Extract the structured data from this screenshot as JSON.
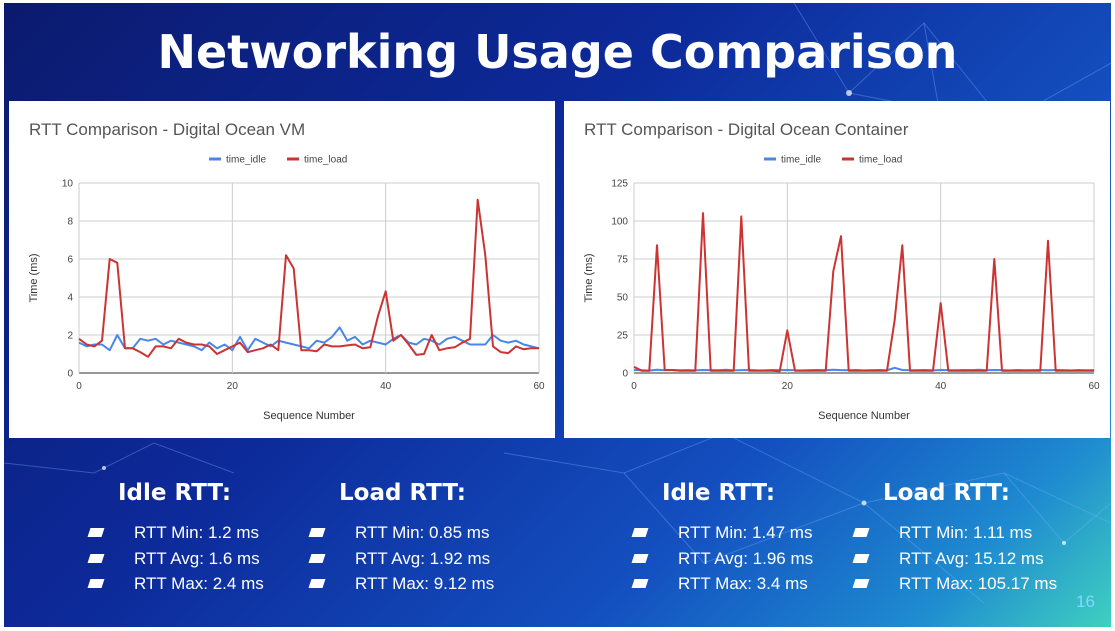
{
  "slide": {
    "title": "Networking Usage Comparison",
    "page_number": "16"
  },
  "colors": {
    "idle": "#4a86e8",
    "load": "#cc3333",
    "background_dark": "#0b1a6e",
    "background_light": "#3fd0c0"
  },
  "chart_data": [
    {
      "type": "line",
      "title": "RTT Comparison - Digital Ocean VM",
      "xlabel": "Sequence Number",
      "ylabel": "Time (ms)",
      "xlim": [
        0,
        60
      ],
      "ylim": [
        0,
        10
      ],
      "xticks": [
        "0",
        "20",
        "40",
        "60"
      ],
      "yticks": [
        "0",
        "2",
        "4",
        "6",
        "8",
        "10"
      ],
      "legend_position": "top",
      "grid": true,
      "series": [
        {
          "name": "time_idle",
          "color": "#4a86e8",
          "values": [
            1.6,
            1.4,
            1.5,
            1.5,
            1.2,
            2.0,
            1.3,
            1.3,
            1.8,
            1.7,
            1.8,
            1.5,
            1.7,
            1.6,
            1.5,
            1.4,
            1.2,
            1.6,
            1.3,
            1.5,
            1.2,
            1.9,
            1.2,
            1.8,
            1.6,
            1.4,
            1.7,
            1.6,
            1.5,
            1.4,
            1.3,
            1.7,
            1.6,
            1.9,
            2.4,
            1.7,
            1.9,
            1.5,
            1.7,
            1.6,
            1.5,
            1.8,
            2.0,
            1.6,
            1.5,
            1.8,
            1.7,
            1.5,
            1.8,
            1.9,
            1.7,
            1.5,
            1.5,
            1.5,
            2.0,
            1.7,
            1.6,
            1.7,
            1.5,
            1.4,
            1.3
          ]
        },
        {
          "name": "time_load",
          "color": "#cc3333",
          "values": [
            1.8,
            1.5,
            1.4,
            1.7,
            6.0,
            5.8,
            1.3,
            1.3,
            1.1,
            0.85,
            1.4,
            1.4,
            1.3,
            1.8,
            1.6,
            1.5,
            1.5,
            1.4,
            1.0,
            1.2,
            1.4,
            1.6,
            1.1,
            1.2,
            1.3,
            1.5,
            1.2,
            6.2,
            5.5,
            1.2,
            1.2,
            1.15,
            1.5,
            1.4,
            1.4,
            1.45,
            1.5,
            1.3,
            1.35,
            3.0,
            4.3,
            1.7,
            2.0,
            1.5,
            0.95,
            1.0,
            2.0,
            1.2,
            1.3,
            1.35,
            1.6,
            1.8,
            9.12,
            6.2,
            1.4,
            1.1,
            1.05,
            1.4,
            1.25,
            1.3,
            1.3
          ]
        }
      ]
    },
    {
      "type": "line",
      "title": "RTT Comparison - Digital Ocean Container",
      "xlabel": "Sequence Number",
      "ylabel": "Time (ms)",
      "xlim": [
        0,
        60
      ],
      "ylim": [
        0,
        125
      ],
      "xticks": [
        "0",
        "20",
        "40",
        "60"
      ],
      "yticks": [
        "0",
        "25",
        "50",
        "75",
        "100",
        "125"
      ],
      "legend_position": "top",
      "grid": true,
      "series": [
        {
          "name": "time_idle",
          "color": "#4a86e8",
          "values": [
            2,
            1.8,
            1.6,
            2.2,
            1.8,
            2,
            1.8,
            1.9,
            1.7,
            2,
            1.9,
            1.8,
            2.1,
            1.7,
            1.9,
            2,
            1.8,
            1.7,
            2,
            1.9,
            2,
            1.8,
            1.7,
            1.9,
            2,
            1.8,
            2.1,
            1.9,
            1.8,
            2,
            1.7,
            1.9,
            2,
            1.8,
            3.4,
            2,
            1.8,
            1.9,
            2,
            1.7,
            2,
            1.9,
            1.8,
            2,
            1.9,
            2.1,
            1.8,
            2,
            1.9,
            1.7,
            2,
            1.8,
            1.9,
            2,
            1.8,
            2,
            1.9,
            1.7,
            2,
            1.8,
            1.9
          ]
        },
        {
          "name": "time_load",
          "color": "#cc3333",
          "values": [
            4,
            1.5,
            1.5,
            84,
            2,
            2,
            1.5,
            1.5,
            1.5,
            105.17,
            1.5,
            1.5,
            1.5,
            1.5,
            103,
            1.5,
            1.5,
            1.5,
            1.5,
            1.11,
            28,
            1.5,
            1.5,
            1.5,
            1.5,
            1.5,
            67,
            90,
            1.5,
            1.5,
            1.5,
            1.5,
            1.5,
            1.5,
            35,
            84,
            1.5,
            1.5,
            1.5,
            1.5,
            46,
            1.5,
            1.5,
            1.5,
            1.5,
            1.5,
            1.5,
            75,
            1.5,
            1.5,
            1.5,
            1.5,
            1.5,
            1.5,
            87,
            1.5,
            1.5,
            1.5,
            1.5,
            1.5,
            1.5
          ]
        }
      ]
    }
  ],
  "stats": [
    {
      "heading": "Idle RTT:",
      "items": [
        "RTT Min: 1.2 ms",
        "RTT Avg: 1.6 ms",
        "RTT Max: 2.4 ms"
      ]
    },
    {
      "heading": "Load RTT:",
      "items": [
        "RTT Min: 0.85 ms",
        "RTT Avg: 1.92 ms",
        "RTT Max: 9.12 ms"
      ]
    },
    {
      "heading": "Idle RTT:",
      "items": [
        "RTT Min: 1.47 ms",
        "RTT Avg: 1.96 ms",
        "RTT Max: 3.4 ms"
      ]
    },
    {
      "heading": "Load RTT:",
      "items": [
        "RTT Min: 1.11 ms",
        "RTT Avg: 15.12 ms",
        "RTT Max: 105.17 ms"
      ]
    }
  ]
}
